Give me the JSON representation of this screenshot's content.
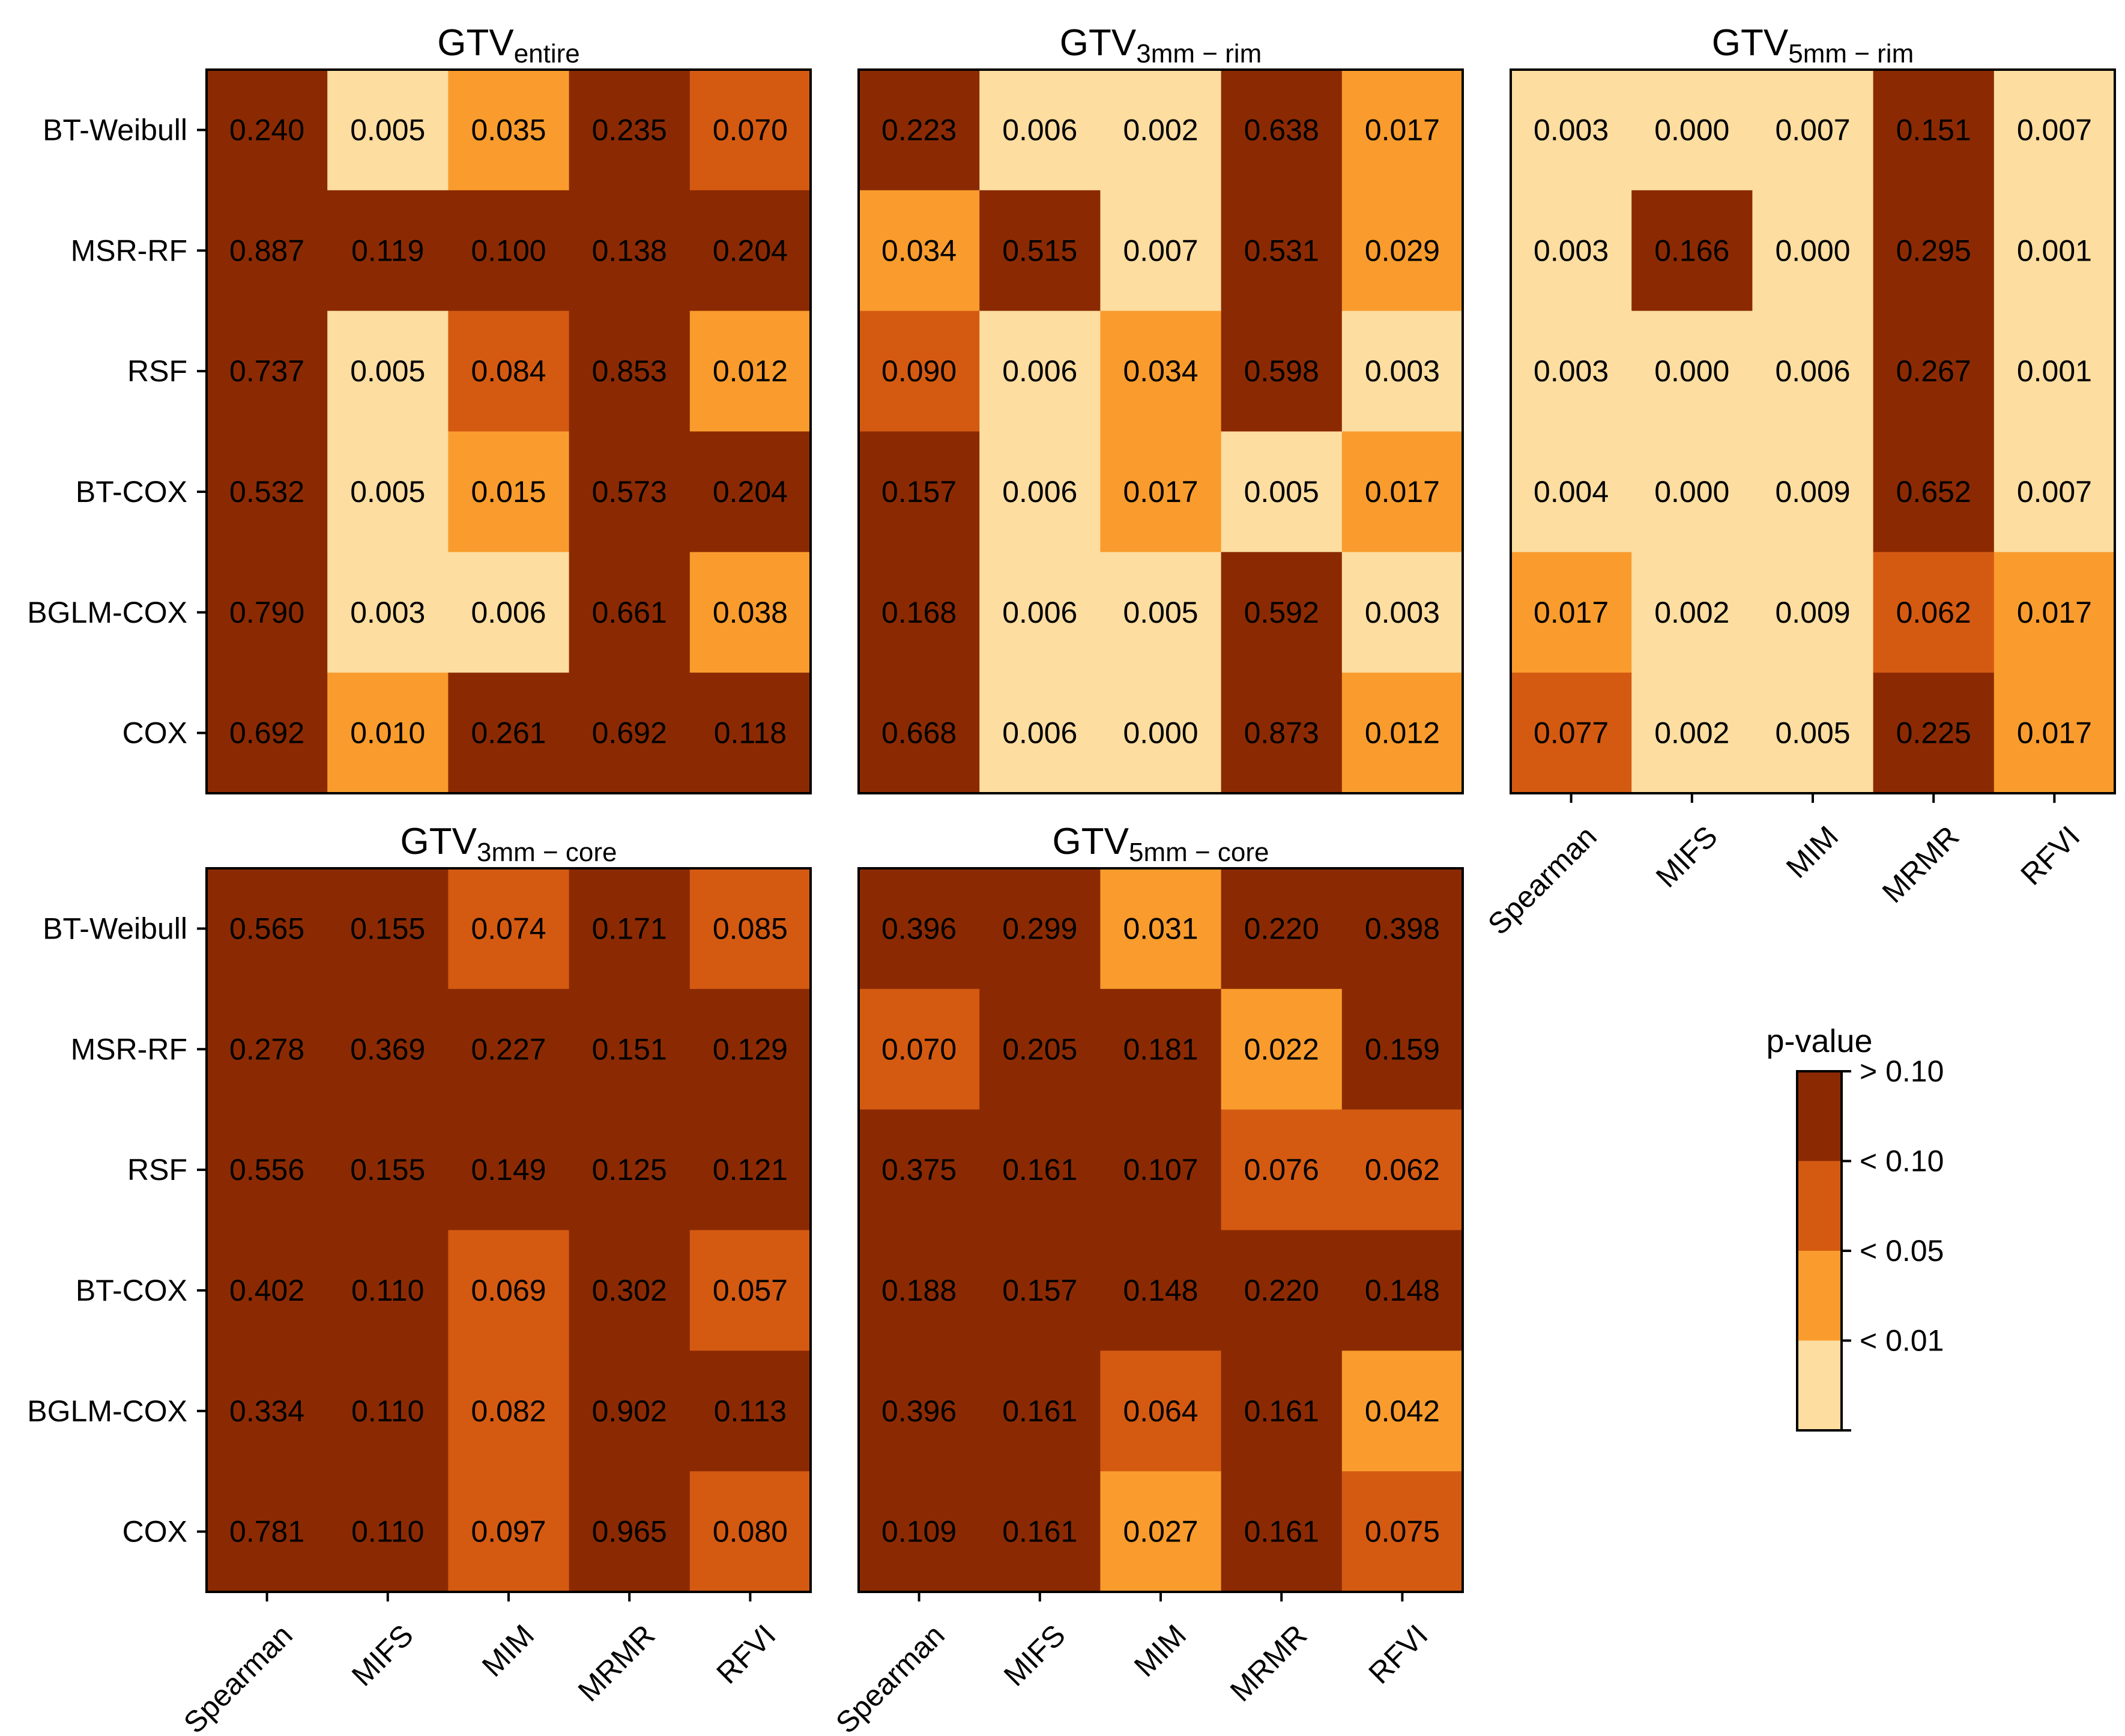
{
  "chart_data": {
    "type": "heatmap",
    "row_labels": [
      "BT-Weibull",
      "MSR-RF",
      "RSF",
      "BT-COX",
      "BGLM-COX",
      "COX"
    ],
    "col_labels": [
      "Spearman",
      "MIFS",
      "MIM",
      "MRMR",
      "RFVI"
    ],
    "colorbar": {
      "title": "p-value",
      "labels": [
        "> 0.10",
        "< 0.10",
        "< 0.05",
        "< 0.01"
      ],
      "colors": [
        "#8b2a02",
        "#d45a12",
        "#f99c2d",
        "#fddda0"
      ]
    },
    "panels": [
      {
        "title_main": "GTV",
        "title_sub": "entire",
        "show_col_labels": false,
        "values": [
          [
            0.24,
            0.005,
            0.035,
            0.235,
            0.07
          ],
          [
            0.887,
            0.119,
            0.1,
            0.138,
            0.204
          ],
          [
            0.737,
            0.005,
            0.084,
            0.853,
            0.012
          ],
          [
            0.532,
            0.005,
            0.015,
            0.573,
            0.204
          ],
          [
            0.79,
            0.003,
            0.006,
            0.661,
            0.038
          ],
          [
            0.692,
            0.01,
            0.261,
            0.692,
            0.118
          ]
        ],
        "text": [
          [
            "0.240",
            "0.005",
            "0.035",
            "0.235",
            "0.070"
          ],
          [
            "0.887",
            "0.119",
            "0.100",
            "0.138",
            "0.204"
          ],
          [
            "0.737",
            "0.005",
            "0.084",
            "0.853",
            "0.012"
          ],
          [
            "0.532",
            "0.005",
            "0.015",
            "0.573",
            "0.204"
          ],
          [
            "0.790",
            "0.003",
            "0.006",
            "0.661",
            "0.038"
          ],
          [
            "0.692",
            "0.010",
            "0.261",
            "0.692",
            "0.118"
          ]
        ]
      },
      {
        "title_main": "GTV",
        "title_sub": "3mm − rim",
        "show_col_labels": false,
        "values": [
          [
            0.223,
            0.006,
            0.002,
            0.638,
            0.017
          ],
          [
            0.034,
            0.515,
            0.007,
            0.531,
            0.029
          ],
          [
            0.09,
            0.006,
            0.034,
            0.598,
            0.003
          ],
          [
            0.157,
            0.006,
            0.017,
            0.005,
            0.017
          ],
          [
            0.168,
            0.006,
            0.005,
            0.592,
            0.003
          ],
          [
            0.668,
            0.006,
            0.0,
            0.873,
            0.012
          ]
        ],
        "text": [
          [
            "0.223",
            "0.006",
            "0.002",
            "0.638",
            "0.017"
          ],
          [
            "0.034",
            "0.515",
            "0.007",
            "0.531",
            "0.029"
          ],
          [
            "0.090",
            "0.006",
            "0.034",
            "0.598",
            "0.003"
          ],
          [
            "0.157",
            "0.006",
            "0.017",
            "0.005",
            "0.017"
          ],
          [
            "0.168",
            "0.006",
            "0.005",
            "0.592",
            "0.003"
          ],
          [
            "0.668",
            "0.006",
            "0.000",
            "0.873",
            "0.012"
          ]
        ]
      },
      {
        "title_main": "GTV",
        "title_sub": "5mm − rim",
        "show_col_labels": true,
        "values": [
          [
            0.003,
            0.0,
            0.007,
            0.151,
            0.007
          ],
          [
            0.003,
            0.166,
            0.0,
            0.295,
            0.001
          ],
          [
            0.003,
            0.0,
            0.006,
            0.267,
            0.001
          ],
          [
            0.004,
            0.0,
            0.009,
            0.652,
            0.007
          ],
          [
            0.017,
            0.002,
            0.009,
            0.062,
            0.017
          ],
          [
            0.077,
            0.002,
            0.005,
            0.225,
            0.017
          ]
        ],
        "text": [
          [
            "0.003",
            "0.000",
            "0.007",
            "0.151",
            "0.007"
          ],
          [
            "0.003",
            "0.166",
            "0.000",
            "0.295",
            "0.001"
          ],
          [
            "0.003",
            "0.000",
            "0.006",
            "0.267",
            "0.001"
          ],
          [
            "0.004",
            "0.000",
            "0.009",
            "0.652",
            "0.007"
          ],
          [
            "0.017",
            "0.002",
            "0.009",
            "0.062",
            "0.017"
          ],
          [
            "0.077",
            "0.002",
            "0.005",
            "0.225",
            "0.017"
          ]
        ]
      },
      {
        "title_main": "GTV",
        "title_sub": "3mm − core",
        "show_col_labels": true,
        "values": [
          [
            0.565,
            0.155,
            0.074,
            0.171,
            0.085
          ],
          [
            0.278,
            0.369,
            0.227,
            0.151,
            0.129
          ],
          [
            0.556,
            0.155,
            0.149,
            0.125,
            0.121
          ],
          [
            0.402,
            0.11,
            0.069,
            0.302,
            0.057
          ],
          [
            0.334,
            0.11,
            0.082,
            0.902,
            0.113
          ],
          [
            0.781,
            0.11,
            0.097,
            0.965,
            0.08
          ]
        ],
        "text": [
          [
            "0.565",
            "0.155",
            "0.074",
            "0.171",
            "0.085"
          ],
          [
            "0.278",
            "0.369",
            "0.227",
            "0.151",
            "0.129"
          ],
          [
            "0.556",
            "0.155",
            "0.149",
            "0.125",
            "0.121"
          ],
          [
            "0.402",
            "0.110",
            "0.069",
            "0.302",
            "0.057"
          ],
          [
            "0.334",
            "0.110",
            "0.082",
            "0.902",
            "0.113"
          ],
          [
            "0.781",
            "0.110",
            "0.097",
            "0.965",
            "0.080"
          ]
        ]
      },
      {
        "title_main": "GTV",
        "title_sub": "5mm − core",
        "show_col_labels": true,
        "values": [
          [
            0.396,
            0.299,
            0.031,
            0.22,
            0.398
          ],
          [
            0.07,
            0.205,
            0.181,
            0.022,
            0.159
          ],
          [
            0.375,
            0.161,
            0.107,
            0.076,
            0.062
          ],
          [
            0.188,
            0.157,
            0.148,
            0.22,
            0.148
          ],
          [
            0.396,
            0.161,
            0.064,
            0.161,
            0.042
          ],
          [
            0.109,
            0.161,
            0.027,
            0.161,
            0.075
          ]
        ],
        "text": [
          [
            "0.396",
            "0.299",
            "0.031",
            "0.220",
            "0.398"
          ],
          [
            "0.070",
            "0.205",
            "0.181",
            "0.022",
            "0.159"
          ],
          [
            "0.375",
            "0.161",
            "0.107",
            "0.076",
            "0.062"
          ],
          [
            "0.188",
            "0.157",
            "0.148",
            "0.220",
            "0.148"
          ],
          [
            "0.396",
            "0.161",
            "0.064",
            "0.161",
            "0.042"
          ],
          [
            "0.109",
            "0.161",
            "0.027",
            "0.161",
            "0.075"
          ]
        ]
      }
    ]
  }
}
